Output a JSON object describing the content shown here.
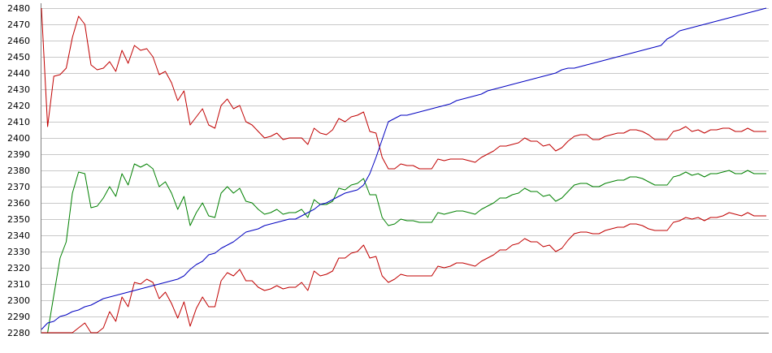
{
  "chart_data": {
    "type": "line",
    "title": "",
    "xlabel": "",
    "ylabel": "",
    "ylim": [
      2280,
      2480
    ],
    "yticks": [
      2480,
      2470,
      2460,
      2450,
      2440,
      2430,
      2420,
      2410,
      2400,
      2390,
      2380,
      2370,
      2360,
      2350,
      2340,
      2330,
      2320,
      2310,
      2300,
      2290,
      2280
    ],
    "grid": true,
    "legend": "none",
    "colors": {
      "upper_band": "#c00000",
      "middle_line": "#008000",
      "lower_band": "#c00000",
      "rising_line": "#0000c0",
      "grid": "#c8c8c8"
    },
    "series": [
      {
        "key": "upper_band",
        "values": [
          2480,
          2407,
          2438,
          2439,
          2443,
          2462,
          2475,
          2470,
          2445,
          2442,
          2443,
          2447,
          2441,
          2454,
          2446,
          2457,
          2454,
          2455,
          2450,
          2439,
          2441,
          2434,
          2423,
          2429,
          2408,
          2413,
          2418,
          2408,
          2406,
          2420,
          2424,
          2418,
          2420,
          2410,
          2408,
          2404,
          2400,
          2401,
          2403,
          2399,
          2400,
          2400,
          2400,
          2396,
          2406,
          2403,
          2402,
          2405,
          2412,
          2410,
          2413,
          2414,
          2416,
          2404,
          2403,
          2388,
          2381,
          2381,
          2384,
          2383,
          2383,
          2381,
          2381,
          2381,
          2387,
          2386,
          2387,
          2387,
          2387,
          2386,
          2385,
          2388,
          2390,
          2392,
          2395,
          2395,
          2396,
          2397,
          2400,
          2398,
          2398,
          2395,
          2396,
          2392,
          2394,
          2398,
          2401,
          2402,
          2402,
          2399,
          2399,
          2401,
          2402,
          2403,
          2403,
          2405,
          2405,
          2404,
          2402,
          2399,
          2399,
          2399,
          2404,
          2405,
          2407,
          2404,
          2405,
          2403,
          2405,
          2405,
          2406,
          2406,
          2404,
          2404,
          2406,
          2404,
          2404,
          2404
        ]
      },
      {
        "key": "middle_line",
        "values": [
          2280,
          2280,
          2303,
          2326,
          2336,
          2366,
          2379,
          2378,
          2357,
          2358,
          2363,
          2370,
          2364,
          2378,
          2371,
          2384,
          2382,
          2384,
          2381,
          2370,
          2373,
          2366,
          2356,
          2364,
          2346,
          2354,
          2360,
          2352,
          2351,
          2366,
          2370,
          2366,
          2369,
          2361,
          2360,
          2356,
          2353,
          2354,
          2356,
          2353,
          2354,
          2354,
          2356,
          2351,
          2362,
          2359,
          2359,
          2361,
          2369,
          2368,
          2371,
          2372,
          2375,
          2365,
          2365,
          2351,
          2346,
          2347,
          2350,
          2349,
          2349,
          2348,
          2348,
          2348,
          2354,
          2353,
          2354,
          2355,
          2355,
          2354,
          2353,
          2356,
          2358,
          2360,
          2363,
          2363,
          2365,
          2366,
          2369,
          2367,
          2367,
          2364,
          2365,
          2361,
          2363,
          2367,
          2371,
          2372,
          2372,
          2370,
          2370,
          2372,
          2373,
          2374,
          2374,
          2376,
          2376,
          2375,
          2373,
          2371,
          2371,
          2371,
          2376,
          2377,
          2379,
          2377,
          2378,
          2376,
          2378,
          2378,
          2379,
          2380,
          2378,
          2378,
          2380,
          2378,
          2378,
          2378
        ]
      },
      {
        "key": "lower_band",
        "values": [
          2280,
          2280,
          2280,
          2280,
          2280,
          2280,
          2283,
          2286,
          2280,
          2280,
          2283,
          2293,
          2287,
          2302,
          2296,
          2311,
          2310,
          2313,
          2311,
          2301,
          2305,
          2298,
          2289,
          2299,
          2284,
          2295,
          2302,
          2296,
          2296,
          2312,
          2317,
          2315,
          2319,
          2312,
          2312,
          2308,
          2306,
          2307,
          2309,
          2307,
          2308,
          2308,
          2311,
          2306,
          2318,
          2315,
          2316,
          2318,
          2326,
          2326,
          2329,
          2330,
          2334,
          2326,
          2327,
          2315,
          2311,
          2313,
          2316,
          2315,
          2315,
          2315,
          2315,
          2315,
          2321,
          2320,
          2321,
          2323,
          2323,
          2322,
          2321,
          2324,
          2326,
          2328,
          2331,
          2331,
          2334,
          2335,
          2338,
          2336,
          2336,
          2333,
          2334,
          2330,
          2332,
          2337,
          2341,
          2342,
          2342,
          2341,
          2341,
          2343,
          2344,
          2345,
          2345,
          2347,
          2347,
          2346,
          2344,
          2343,
          2343,
          2343,
          2348,
          2349,
          2351,
          2350,
          2351,
          2349,
          2351,
          2351,
          2352,
          2354,
          2353,
          2352,
          2354,
          2352,
          2352,
          2352
        ]
      },
      {
        "key": "rising_line",
        "values": [
          2282,
          2286,
          2287,
          2290,
          2291,
          2293,
          2294,
          2296,
          2297,
          2299,
          2301,
          2302,
          2303,
          2304,
          2305,
          2306,
          2307,
          2308,
          2309,
          2310,
          2311,
          2312,
          2313,
          2315,
          2319,
          2322,
          2324,
          2328,
          2329,
          2332,
          2334,
          2336,
          2339,
          2342,
          2343,
          2344,
          2346,
          2347,
          2348,
          2349,
          2350,
          2350,
          2352,
          2354,
          2356,
          2359,
          2360,
          2362,
          2364,
          2366,
          2367,
          2368,
          2371,
          2378,
          2388,
          2399,
          2410,
          2412,
          2414,
          2414,
          2415,
          2416,
          2417,
          2418,
          2419,
          2420,
          2421,
          2423,
          2424,
          2425,
          2426,
          2427,
          2429,
          2430,
          2431,
          2432,
          2433,
          2434,
          2435,
          2436,
          2437,
          2438,
          2439,
          2440,
          2442,
          2443,
          2443,
          2444,
          2445,
          2446,
          2447,
          2448,
          2449,
          2450,
          2451,
          2452,
          2453,
          2454,
          2455,
          2456,
          2457,
          2461,
          2463,
          2466,
          2467,
          2468,
          2469,
          2470,
          2471,
          2472,
          2473,
          2474,
          2475,
          2476,
          2477,
          2478,
          2479,
          2480
        ]
      }
    ]
  }
}
